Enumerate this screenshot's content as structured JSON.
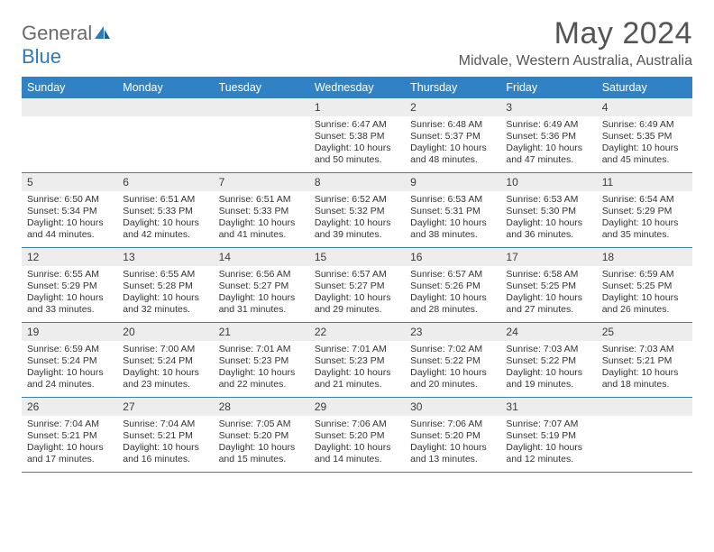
{
  "logo": {
    "text1": "General",
    "text2": "Blue"
  },
  "title": "May 2024",
  "location": "Midvale, Western Australia, Australia",
  "colors": {
    "header_bg": "#3082c4",
    "header_text": "#ffffff",
    "daynum_bg": "#ededed",
    "border": "#3c7fb5",
    "logo_gray": "#6a6a6a",
    "logo_blue": "#2d7bbd",
    "title_color": "#555555"
  },
  "dayNames": [
    "Sunday",
    "Monday",
    "Tuesday",
    "Wednesday",
    "Thursday",
    "Friday",
    "Saturday"
  ],
  "weeks": [
    [
      {
        "n": "",
        "sunrise": "",
        "sunset": "",
        "daylight": ""
      },
      {
        "n": "",
        "sunrise": "",
        "sunset": "",
        "daylight": ""
      },
      {
        "n": "",
        "sunrise": "",
        "sunset": "",
        "daylight": ""
      },
      {
        "n": "1",
        "sunrise": "Sunrise: 6:47 AM",
        "sunset": "Sunset: 5:38 PM",
        "daylight": "Daylight: 10 hours and 50 minutes."
      },
      {
        "n": "2",
        "sunrise": "Sunrise: 6:48 AM",
        "sunset": "Sunset: 5:37 PM",
        "daylight": "Daylight: 10 hours and 48 minutes."
      },
      {
        "n": "3",
        "sunrise": "Sunrise: 6:49 AM",
        "sunset": "Sunset: 5:36 PM",
        "daylight": "Daylight: 10 hours and 47 minutes."
      },
      {
        "n": "4",
        "sunrise": "Sunrise: 6:49 AM",
        "sunset": "Sunset: 5:35 PM",
        "daylight": "Daylight: 10 hours and 45 minutes."
      }
    ],
    [
      {
        "n": "5",
        "sunrise": "Sunrise: 6:50 AM",
        "sunset": "Sunset: 5:34 PM",
        "daylight": "Daylight: 10 hours and 44 minutes."
      },
      {
        "n": "6",
        "sunrise": "Sunrise: 6:51 AM",
        "sunset": "Sunset: 5:33 PM",
        "daylight": "Daylight: 10 hours and 42 minutes."
      },
      {
        "n": "7",
        "sunrise": "Sunrise: 6:51 AM",
        "sunset": "Sunset: 5:33 PM",
        "daylight": "Daylight: 10 hours and 41 minutes."
      },
      {
        "n": "8",
        "sunrise": "Sunrise: 6:52 AM",
        "sunset": "Sunset: 5:32 PM",
        "daylight": "Daylight: 10 hours and 39 minutes."
      },
      {
        "n": "9",
        "sunrise": "Sunrise: 6:53 AM",
        "sunset": "Sunset: 5:31 PM",
        "daylight": "Daylight: 10 hours and 38 minutes."
      },
      {
        "n": "10",
        "sunrise": "Sunrise: 6:53 AM",
        "sunset": "Sunset: 5:30 PM",
        "daylight": "Daylight: 10 hours and 36 minutes."
      },
      {
        "n": "11",
        "sunrise": "Sunrise: 6:54 AM",
        "sunset": "Sunset: 5:29 PM",
        "daylight": "Daylight: 10 hours and 35 minutes."
      }
    ],
    [
      {
        "n": "12",
        "sunrise": "Sunrise: 6:55 AM",
        "sunset": "Sunset: 5:29 PM",
        "daylight": "Daylight: 10 hours and 33 minutes."
      },
      {
        "n": "13",
        "sunrise": "Sunrise: 6:55 AM",
        "sunset": "Sunset: 5:28 PM",
        "daylight": "Daylight: 10 hours and 32 minutes."
      },
      {
        "n": "14",
        "sunrise": "Sunrise: 6:56 AM",
        "sunset": "Sunset: 5:27 PM",
        "daylight": "Daylight: 10 hours and 31 minutes."
      },
      {
        "n": "15",
        "sunrise": "Sunrise: 6:57 AM",
        "sunset": "Sunset: 5:27 PM",
        "daylight": "Daylight: 10 hours and 29 minutes."
      },
      {
        "n": "16",
        "sunrise": "Sunrise: 6:57 AM",
        "sunset": "Sunset: 5:26 PM",
        "daylight": "Daylight: 10 hours and 28 minutes."
      },
      {
        "n": "17",
        "sunrise": "Sunrise: 6:58 AM",
        "sunset": "Sunset: 5:25 PM",
        "daylight": "Daylight: 10 hours and 27 minutes."
      },
      {
        "n": "18",
        "sunrise": "Sunrise: 6:59 AM",
        "sunset": "Sunset: 5:25 PM",
        "daylight": "Daylight: 10 hours and 26 minutes."
      }
    ],
    [
      {
        "n": "19",
        "sunrise": "Sunrise: 6:59 AM",
        "sunset": "Sunset: 5:24 PM",
        "daylight": "Daylight: 10 hours and 24 minutes."
      },
      {
        "n": "20",
        "sunrise": "Sunrise: 7:00 AM",
        "sunset": "Sunset: 5:24 PM",
        "daylight": "Daylight: 10 hours and 23 minutes."
      },
      {
        "n": "21",
        "sunrise": "Sunrise: 7:01 AM",
        "sunset": "Sunset: 5:23 PM",
        "daylight": "Daylight: 10 hours and 22 minutes."
      },
      {
        "n": "22",
        "sunrise": "Sunrise: 7:01 AM",
        "sunset": "Sunset: 5:23 PM",
        "daylight": "Daylight: 10 hours and 21 minutes."
      },
      {
        "n": "23",
        "sunrise": "Sunrise: 7:02 AM",
        "sunset": "Sunset: 5:22 PM",
        "daylight": "Daylight: 10 hours and 20 minutes."
      },
      {
        "n": "24",
        "sunrise": "Sunrise: 7:03 AM",
        "sunset": "Sunset: 5:22 PM",
        "daylight": "Daylight: 10 hours and 19 minutes."
      },
      {
        "n": "25",
        "sunrise": "Sunrise: 7:03 AM",
        "sunset": "Sunset: 5:21 PM",
        "daylight": "Daylight: 10 hours and 18 minutes."
      }
    ],
    [
      {
        "n": "26",
        "sunrise": "Sunrise: 7:04 AM",
        "sunset": "Sunset: 5:21 PM",
        "daylight": "Daylight: 10 hours and 17 minutes."
      },
      {
        "n": "27",
        "sunrise": "Sunrise: 7:04 AM",
        "sunset": "Sunset: 5:21 PM",
        "daylight": "Daylight: 10 hours and 16 minutes."
      },
      {
        "n": "28",
        "sunrise": "Sunrise: 7:05 AM",
        "sunset": "Sunset: 5:20 PM",
        "daylight": "Daylight: 10 hours and 15 minutes."
      },
      {
        "n": "29",
        "sunrise": "Sunrise: 7:06 AM",
        "sunset": "Sunset: 5:20 PM",
        "daylight": "Daylight: 10 hours and 14 minutes."
      },
      {
        "n": "30",
        "sunrise": "Sunrise: 7:06 AM",
        "sunset": "Sunset: 5:20 PM",
        "daylight": "Daylight: 10 hours and 13 minutes."
      },
      {
        "n": "31",
        "sunrise": "Sunrise: 7:07 AM",
        "sunset": "Sunset: 5:19 PM",
        "daylight": "Daylight: 10 hours and 12 minutes."
      },
      {
        "n": "",
        "sunrise": "",
        "sunset": "",
        "daylight": ""
      }
    ]
  ]
}
